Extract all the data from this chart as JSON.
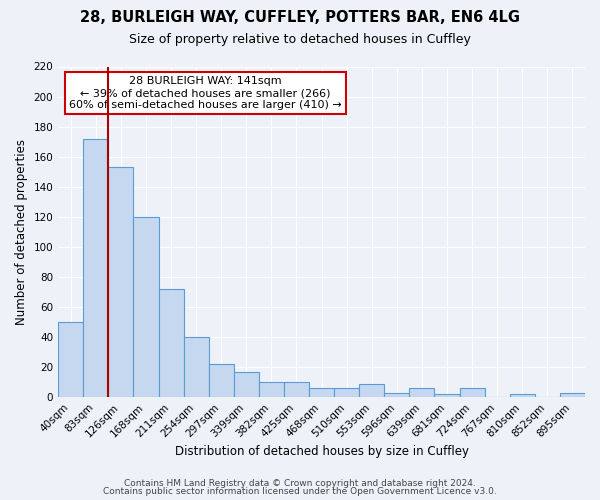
{
  "title1": "28, BURLEIGH WAY, CUFFLEY, POTTERS BAR, EN6 4LG",
  "title2": "Size of property relative to detached houses in Cuffley",
  "xlabel": "Distribution of detached houses by size in Cuffley",
  "ylabel": "Number of detached properties",
  "categories": [
    "40sqm",
    "83sqm",
    "126sqm",
    "168sqm",
    "211sqm",
    "254sqm",
    "297sqm",
    "339sqm",
    "382sqm",
    "425sqm",
    "468sqm",
    "510sqm",
    "553sqm",
    "596sqm",
    "639sqm",
    "681sqm",
    "724sqm",
    "767sqm",
    "810sqm",
    "852sqm",
    "895sqm"
  ],
  "values": [
    50,
    172,
    153,
    120,
    72,
    40,
    22,
    17,
    10,
    10,
    6,
    6,
    9,
    3,
    6,
    2,
    6,
    0,
    2,
    0,
    3
  ],
  "bar_color": "#c5d8ef",
  "bar_edge_color": "#5b9bd5",
  "vline_x": 1.5,
  "vline_color": "#aa0000",
  "annotation_title": "28 BURLEIGH WAY: 141sqm",
  "annotation_line1": "← 39% of detached houses are smaller (266)",
  "annotation_line2": "60% of semi-detached houses are larger (410) →",
  "annotation_box_facecolor": "#ffffff",
  "annotation_box_edgecolor": "#cc0000",
  "ylim": [
    0,
    220
  ],
  "yticks": [
    0,
    20,
    40,
    60,
    80,
    100,
    120,
    140,
    160,
    180,
    200,
    220
  ],
  "footer1": "Contains HM Land Registry data © Crown copyright and database right 2024.",
  "footer2": "Contains public sector information licensed under the Open Government Licence v3.0.",
  "bg_color": "#eef2f8",
  "plot_bg_color": "#eef2f8",
  "title_fontsize": 10.5,
  "subtitle_fontsize": 9,
  "axis_label_fontsize": 8.5,
  "tick_fontsize": 7.5,
  "annotation_fontsize": 8,
  "footer_fontsize": 6.5,
  "grid_color": "#ffffff"
}
